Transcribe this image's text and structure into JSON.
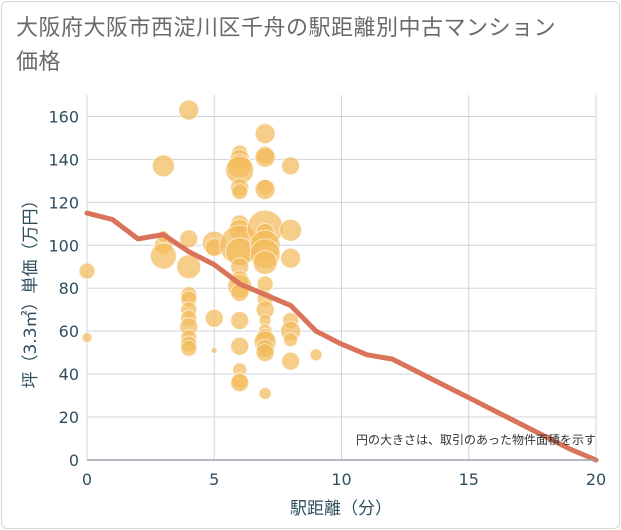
{
  "title": "大阪府大阪市西淀川区千舟の駅距離別中古マンション価格",
  "chart_data": {
    "type": "scatter",
    "title": "大阪府大阪市西淀川区千舟の駅距離別中古マンション価格",
    "xlabel": "駅距離（分）",
    "ylabel": "坪（3.3㎡）単価（万円）",
    "xlim": [
      0,
      20
    ],
    "ylim": [
      0,
      170
    ],
    "xticks": [
      "0",
      "5",
      "10",
      "15",
      "20"
    ],
    "yticks": [
      "0",
      "20",
      "40",
      "60",
      "80",
      "100",
      "120",
      "140",
      "160"
    ],
    "grid": true,
    "annotation": "円の大きさは、取引のあった物件面積を示す",
    "colors": {
      "bubble": "#f3bb5b",
      "line": "#d9735a",
      "grid": "#d0d5dc"
    },
    "points": [
      {
        "x": 0,
        "y": 88,
        "size": 8
      },
      {
        "x": 0,
        "y": 57,
        "size": 5
      },
      {
        "x": 3,
        "y": 137,
        "size": 11
      },
      {
        "x": 3,
        "y": 100,
        "size": 9
      },
      {
        "x": 3,
        "y": 95,
        "size": 13
      },
      {
        "x": 3,
        "y": 104,
        "size": 6
      },
      {
        "x": 4,
        "y": 163,
        "size": 10
      },
      {
        "x": 4,
        "y": 103,
        "size": 9
      },
      {
        "x": 4,
        "y": 90,
        "size": 12
      },
      {
        "x": 4,
        "y": 77,
        "size": 8
      },
      {
        "x": 4,
        "y": 75,
        "size": 8
      },
      {
        "x": 4,
        "y": 70,
        "size": 8
      },
      {
        "x": 4,
        "y": 66,
        "size": 8
      },
      {
        "x": 4,
        "y": 62,
        "size": 9
      },
      {
        "x": 4,
        "y": 57,
        "size": 8
      },
      {
        "x": 4,
        "y": 54,
        "size": 8
      },
      {
        "x": 4,
        "y": 52,
        "size": 8
      },
      {
        "x": 5,
        "y": 101,
        "size": 12
      },
      {
        "x": 5,
        "y": 99,
        "size": 9
      },
      {
        "x": 5,
        "y": 66,
        "size": 9
      },
      {
        "x": 5,
        "y": 51,
        "size": 3
      },
      {
        "x": 6,
        "y": 143,
        "size": 8
      },
      {
        "x": 6,
        "y": 140,
        "size": 10
      },
      {
        "x": 6,
        "y": 137,
        "size": 12
      },
      {
        "x": 6,
        "y": 135,
        "size": 14
      },
      {
        "x": 6,
        "y": 127,
        "size": 9
      },
      {
        "x": 6,
        "y": 125,
        "size": 8
      },
      {
        "x": 6,
        "y": 110,
        "size": 9
      },
      {
        "x": 6,
        "y": 107,
        "size": 11
      },
      {
        "x": 6,
        "y": 100,
        "size": 20
      },
      {
        "x": 6,
        "y": 97,
        "size": 14
      },
      {
        "x": 6,
        "y": 90,
        "size": 9
      },
      {
        "x": 6,
        "y": 84,
        "size": 9
      },
      {
        "x": 6,
        "y": 81,
        "size": 12
      },
      {
        "x": 6,
        "y": 78,
        "size": 9
      },
      {
        "x": 6,
        "y": 65,
        "size": 9
      },
      {
        "x": 6,
        "y": 53,
        "size": 9
      },
      {
        "x": 6,
        "y": 42,
        "size": 7
      },
      {
        "x": 6,
        "y": 37,
        "size": 8
      },
      {
        "x": 6,
        "y": 36,
        "size": 9
      },
      {
        "x": 7,
        "y": 152,
        "size": 10
      },
      {
        "x": 7,
        "y": 142,
        "size": 9
      },
      {
        "x": 7,
        "y": 141,
        "size": 10
      },
      {
        "x": 7,
        "y": 127,
        "size": 8
      },
      {
        "x": 7,
        "y": 126,
        "size": 10
      },
      {
        "x": 7,
        "y": 108,
        "size": 18
      },
      {
        "x": 7,
        "y": 106,
        "size": 9
      },
      {
        "x": 7,
        "y": 100,
        "size": 15
      },
      {
        "x": 7,
        "y": 96,
        "size": 15
      },
      {
        "x": 7,
        "y": 92,
        "size": 12
      },
      {
        "x": 7,
        "y": 82,
        "size": 8
      },
      {
        "x": 7,
        "y": 75,
        "size": 8
      },
      {
        "x": 7,
        "y": 70,
        "size": 9
      },
      {
        "x": 7,
        "y": 65,
        "size": 6
      },
      {
        "x": 7,
        "y": 60,
        "size": 7
      },
      {
        "x": 7,
        "y": 57,
        "size": 9
      },
      {
        "x": 7,
        "y": 55,
        "size": 11
      },
      {
        "x": 7,
        "y": 52,
        "size": 9
      },
      {
        "x": 7,
        "y": 50,
        "size": 9
      },
      {
        "x": 7,
        "y": 31,
        "size": 6
      },
      {
        "x": 8,
        "y": 137,
        "size": 9
      },
      {
        "x": 8,
        "y": 107,
        "size": 11
      },
      {
        "x": 8,
        "y": 94,
        "size": 10
      },
      {
        "x": 8,
        "y": 65,
        "size": 8
      },
      {
        "x": 8,
        "y": 60,
        "size": 10
      },
      {
        "x": 8,
        "y": 56,
        "size": 7
      },
      {
        "x": 8,
        "y": 46,
        "size": 9
      },
      {
        "x": 9,
        "y": 49,
        "size": 6
      }
    ],
    "trend": {
      "x": [
        0,
        1,
        2,
        3,
        4,
        5,
        6,
        7,
        8,
        9,
        10,
        11,
        12,
        13,
        14,
        15,
        16,
        17,
        18,
        19,
        20
      ],
      "y": [
        115,
        112,
        103,
        105,
        97,
        91,
        82,
        77,
        72,
        60,
        54,
        49,
        47,
        41,
        35,
        29,
        23,
        17,
        11,
        5,
        0
      ]
    }
  }
}
